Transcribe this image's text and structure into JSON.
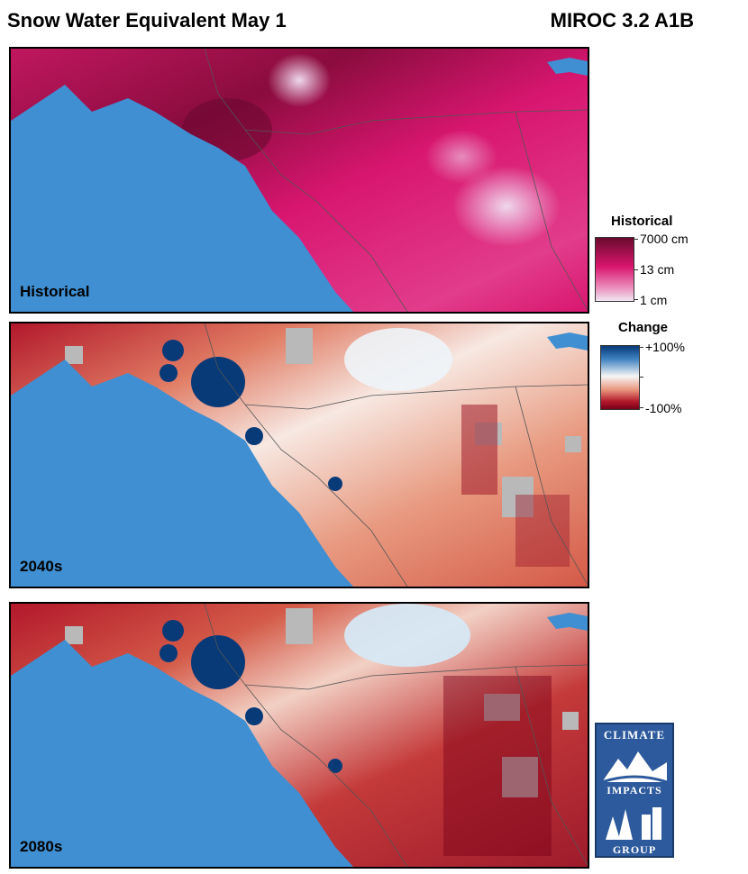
{
  "header": {
    "title": "Snow Water Equivalent May 1",
    "model": "MIROC 3.2 A1B"
  },
  "panels": [
    {
      "label": "Historical"
    },
    {
      "label": "2040s"
    },
    {
      "label": "2080s"
    }
  ],
  "legend_historical": {
    "title": "Historical",
    "ticks": [
      "7000 cm",
      "13 cm",
      "1 cm"
    ]
  },
  "legend_change": {
    "title": "Change",
    "ticks": [
      "+100%",
      "-100%"
    ]
  },
  "logo": {
    "top_text": "CLIMATE",
    "mid_text": "IMPACTS",
    "bottom_text": "GROUP"
  },
  "colors": {
    "ocean": "#3f8fd2",
    "historical_high": "#7a0a36",
    "historical_mid": "#e0146e",
    "historical_low": "#efe0ef",
    "change_pos": "#083a78",
    "change_neutral": "#f4f6f8",
    "change_neg": "#7a0019",
    "no_data": "#b9b9b9"
  }
}
